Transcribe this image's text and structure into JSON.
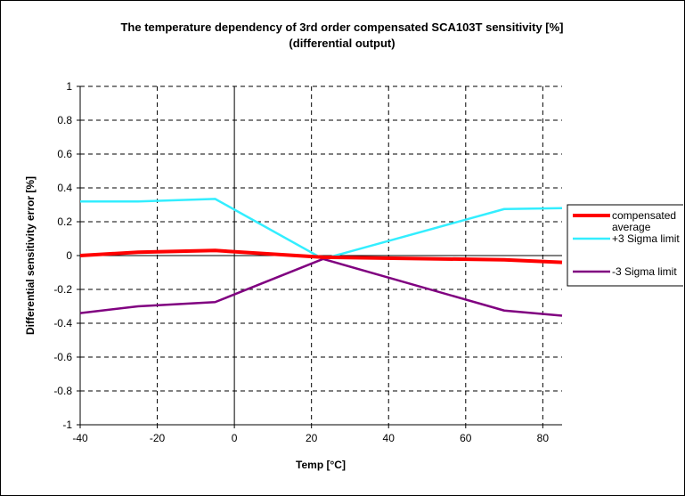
{
  "chart_data": {
    "type": "line",
    "title_lines": [
      "The temperature dependency of 3rd order compensated SCA103T sensitivity [%]",
      "(differential output)"
    ],
    "xlabel": "Temp [°C]",
    "ylabel": "Differential sensitivity error [%]",
    "xlim": [
      -40,
      85
    ],
    "ylim": [
      -1,
      1
    ],
    "xticks": [
      -40,
      -20,
      0,
      20,
      40,
      60,
      80
    ],
    "xtick_labels": [
      "-40",
      "-20",
      "0",
      "20",
      "40",
      "60",
      "80"
    ],
    "yticks": [
      -1,
      -0.8,
      -0.6,
      -0.4,
      -0.2,
      0,
      0.2,
      0.4,
      0.6,
      0.8,
      1
    ],
    "ytick_labels": [
      "-1",
      "-0.8",
      "-0.6",
      "-0.4",
      "-0.2",
      "0",
      "0.2",
      "0.4",
      "0.6",
      "0.8",
      "1"
    ],
    "grid": true,
    "legend_position": "right",
    "series": [
      {
        "name": "compensated average",
        "legend_lines": [
          "compensated",
          "average"
        ],
        "color": "#ff0000",
        "x": [
          -40,
          -25,
          -5,
          23,
          70,
          85
        ],
        "y": [
          0.0,
          0.02,
          0.03,
          -0.01,
          -0.025,
          -0.04
        ]
      },
      {
        "name": "+3 Sigma limit",
        "legend_lines": [
          "+3 Sigma limit"
        ],
        "color": "#33eeff",
        "x": [
          -40,
          -25,
          -5,
          23,
          70,
          85
        ],
        "y": [
          0.32,
          0.32,
          0.335,
          -0.02,
          0.275,
          0.28
        ]
      },
      {
        "name": "-3 Sigma limit",
        "legend_lines": [
          "-3 Sigma limit"
        ],
        "color": "#800080",
        "x": [
          -40,
          -25,
          -5,
          23,
          70,
          85
        ],
        "y": [
          -0.34,
          -0.3,
          -0.275,
          -0.02,
          -0.325,
          -0.355
        ]
      }
    ]
  }
}
